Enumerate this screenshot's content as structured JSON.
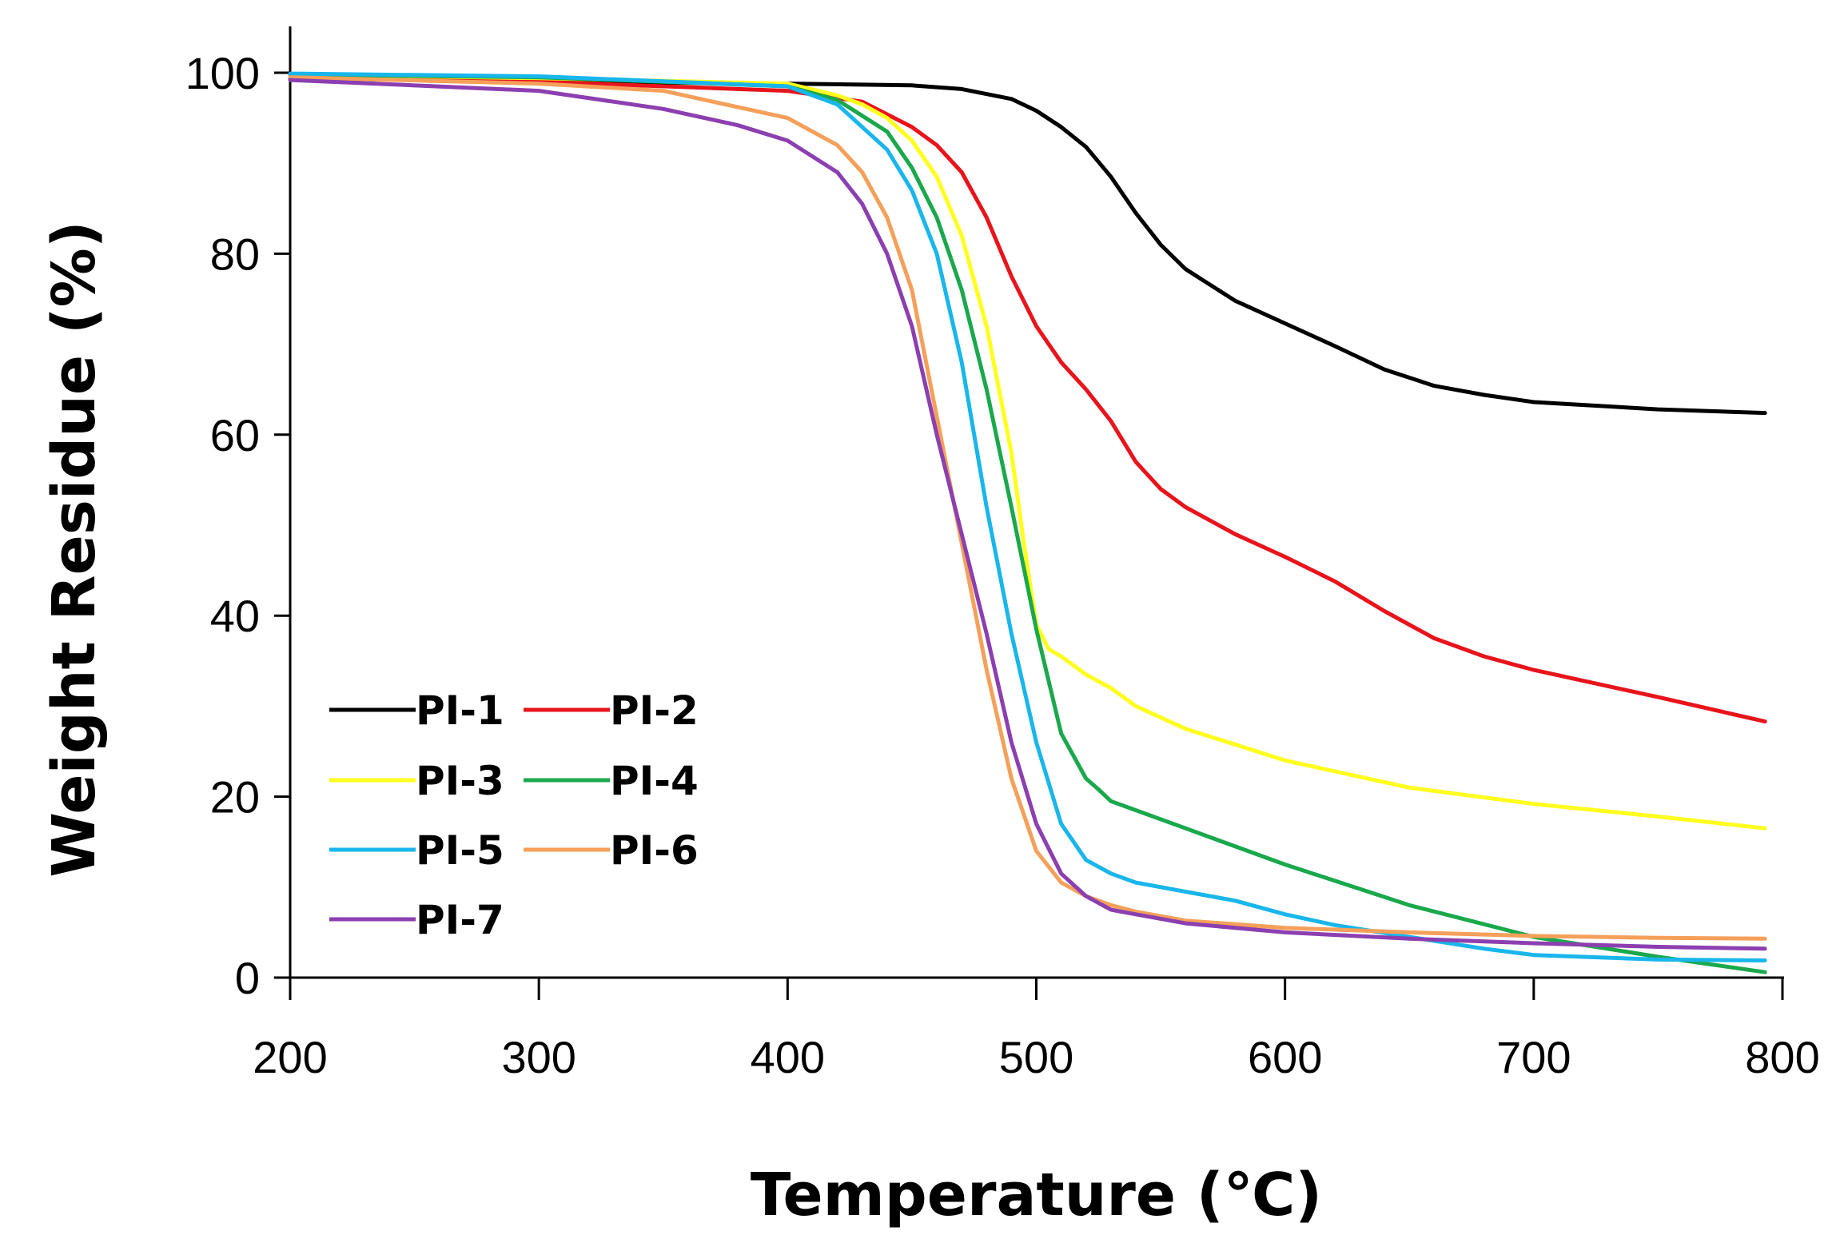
{
  "chart_data": {
    "type": "line",
    "title": "",
    "xlabel": "Temperature (℃)",
    "ylabel": "Weight Residue (%)",
    "xlim": [
      200,
      800
    ],
    "ylim": [
      0,
      100
    ],
    "x_ticks": [
      "200",
      "300",
      "400",
      "500",
      "600",
      "700",
      "800"
    ],
    "y_ticks": [
      "0",
      "20",
      "40",
      "60",
      "80",
      "100"
    ],
    "legend_position": "lower-left",
    "series": [
      {
        "name": "PI-1",
        "color": "#000000",
        "x": [
          200,
          300,
          400,
          450,
          470,
          490,
          500,
          510,
          520,
          530,
          540,
          550,
          560,
          580,
          600,
          620,
          640,
          660,
          680,
          700,
          750,
          793
        ],
        "y": [
          99.4,
          99.0,
          98.8,
          98.6,
          98.2,
          97.1,
          95.8,
          94.0,
          91.8,
          88.5,
          84.5,
          81.0,
          78.3,
          74.8,
          72.3,
          69.8,
          67.2,
          65.4,
          64.4,
          63.6,
          62.8,
          62.4
        ]
      },
      {
        "name": "PI-2",
        "color": "#e8141c",
        "x": [
          200,
          300,
          400,
          430,
          450,
          460,
          470,
          480,
          490,
          500,
          510,
          520,
          530,
          540,
          550,
          560,
          580,
          600,
          620,
          640,
          660,
          680,
          700,
          750,
          793
        ],
        "y": [
          99.8,
          99.0,
          98.0,
          96.8,
          94.0,
          92.0,
          89.0,
          84.0,
          77.5,
          72.0,
          68.0,
          65.0,
          61.5,
          57.0,
          54.0,
          52.0,
          49.0,
          46.5,
          43.8,
          40.5,
          37.5,
          35.5,
          34.0,
          31.0,
          28.3
        ]
      },
      {
        "name": "PI-3",
        "color": "#ffff1e",
        "x": [
          200,
          300,
          400,
          420,
          430,
          440,
          450,
          460,
          470,
          480,
          490,
          495,
          500,
          505,
          510,
          520,
          530,
          540,
          560,
          600,
          650,
          700,
          750,
          793
        ],
        "y": [
          99.8,
          99.4,
          98.8,
          97.5,
          96.5,
          95.0,
          92.5,
          88.5,
          82.0,
          72.0,
          58.0,
          48.0,
          39.0,
          36.3,
          35.5,
          33.5,
          32.0,
          30.0,
          27.5,
          24.0,
          21.0,
          19.2,
          17.8,
          16.5
        ]
      },
      {
        "name": "PI-4",
        "color": "#1aa84c",
        "x": [
          200,
          300,
          400,
          420,
          440,
          450,
          460,
          470,
          480,
          490,
          500,
          510,
          520,
          525,
          530,
          540,
          560,
          600,
          650,
          700,
          750,
          793
        ],
        "y": [
          99.8,
          99.5,
          98.5,
          97.0,
          93.5,
          89.5,
          84.0,
          76.0,
          65.0,
          52.0,
          38.5,
          27.0,
          22.0,
          20.8,
          19.5,
          18.5,
          16.5,
          12.5,
          8.0,
          4.5,
          2.3,
          0.6
        ]
      },
      {
        "name": "PI-5",
        "color": "#19b6ec",
        "x": [
          200,
          300,
          400,
          420,
          440,
          450,
          460,
          470,
          480,
          490,
          500,
          510,
          520,
          530,
          540,
          560,
          580,
          600,
          620,
          650,
          680,
          700,
          750,
          793
        ],
        "y": [
          99.9,
          99.6,
          98.5,
          96.5,
          91.5,
          87.0,
          80.0,
          68.0,
          52.0,
          38.0,
          26.0,
          17.0,
          13.0,
          11.5,
          10.5,
          9.5,
          8.5,
          7.0,
          5.8,
          4.5,
          3.2,
          2.5,
          2.0,
          1.9
        ]
      },
      {
        "name": "PI-6",
        "color": "#f5a05a",
        "x": [
          200,
          300,
          350,
          400,
          420,
          430,
          440,
          450,
          460,
          470,
          480,
          490,
          500,
          510,
          520,
          530,
          540,
          560,
          600,
          650,
          700,
          750,
          793
        ],
        "y": [
          99.5,
          98.8,
          98.0,
          95.0,
          92.0,
          89.0,
          84.0,
          76.0,
          62.0,
          48.0,
          34.0,
          22.0,
          14.0,
          10.5,
          9.0,
          8.0,
          7.3,
          6.3,
          5.5,
          5.0,
          4.6,
          4.4,
          4.3
        ]
      },
      {
        "name": "PI-7",
        "color": "#8c3fb0",
        "x": [
          200,
          300,
          350,
          380,
          400,
          420,
          430,
          440,
          450,
          460,
          470,
          480,
          490,
          500,
          510,
          520,
          530,
          540,
          560,
          600,
          650,
          700,
          750,
          793
        ],
        "y": [
          99.2,
          98.0,
          96.0,
          94.2,
          92.5,
          89.0,
          85.5,
          80.0,
          72.0,
          60.0,
          49.0,
          38.0,
          26.0,
          17.0,
          11.5,
          9.0,
          7.5,
          7.0,
          6.0,
          5.0,
          4.3,
          3.8,
          3.4,
          3.2
        ]
      }
    ]
  }
}
